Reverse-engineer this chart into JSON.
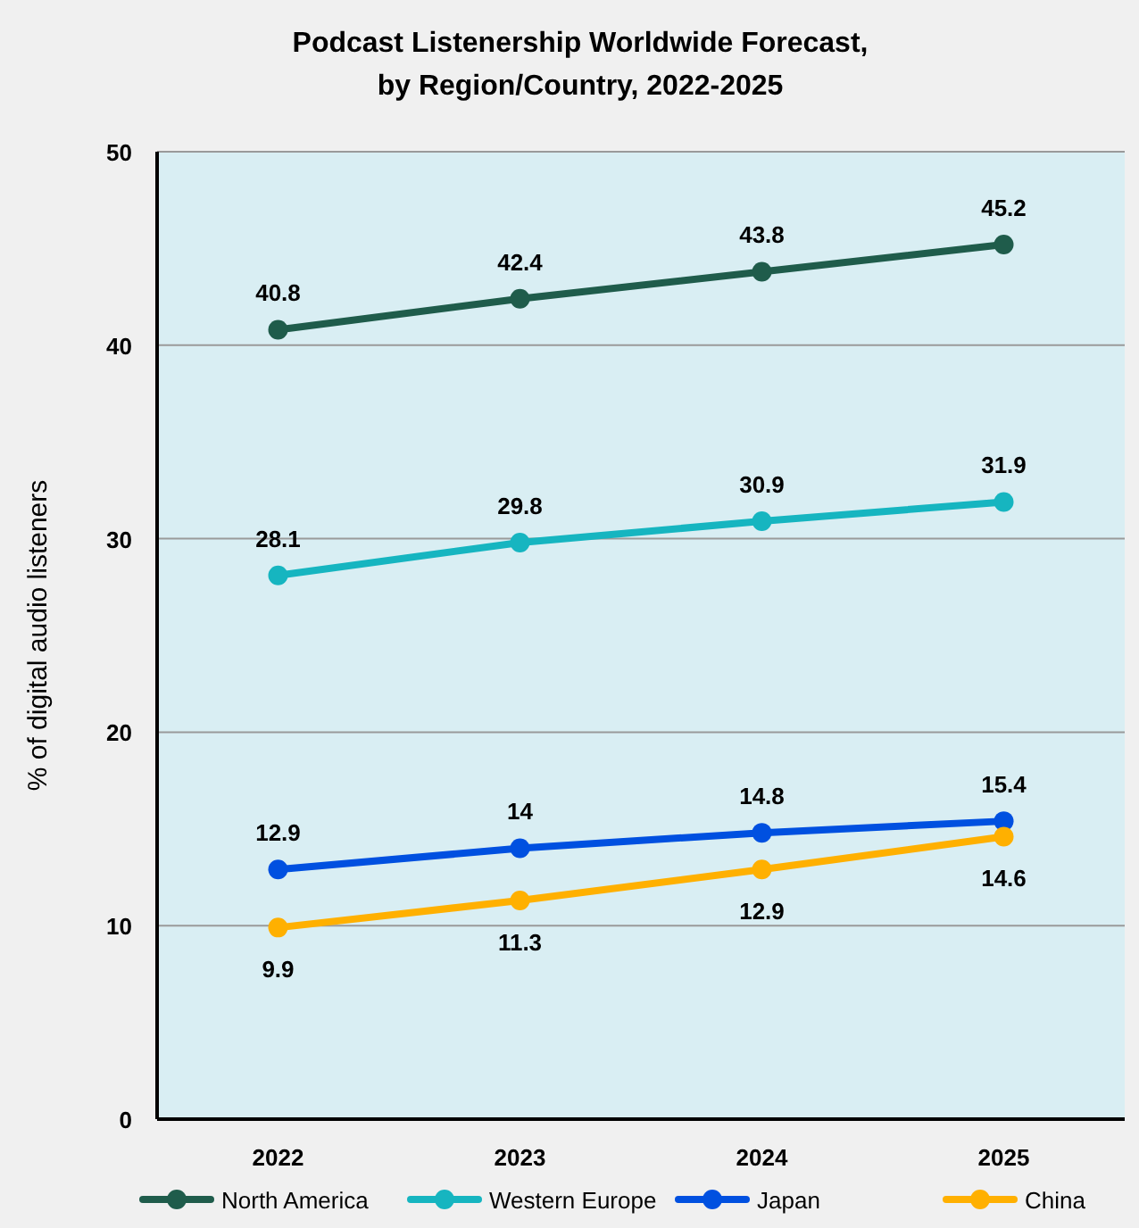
{
  "chart_data": {
    "type": "line",
    "title": "Podcast Listenership Worldwide Forecast,\nby Region/Country, 2022-2025",
    "ylabel": "% of digital audio listeners",
    "categories": [
      "2022",
      "2023",
      "2024",
      "2025"
    ],
    "series": [
      {
        "name": "North America",
        "color": "#1f5c4b",
        "values": [
          40.8,
          42.4,
          43.8,
          45.2
        ]
      },
      {
        "name": "Western Europe",
        "color": "#16b5c0",
        "values": [
          28.1,
          29.8,
          30.9,
          31.9
        ]
      },
      {
        "name": "Japan",
        "color": "#0050e0",
        "values": [
          12.9,
          14,
          14.8,
          15.4
        ]
      },
      {
        "name": "China",
        "color": "#ffb000",
        "values": [
          9.9,
          11.3,
          12.9,
          14.6
        ]
      }
    ],
    "ylim": [
      0,
      50
    ],
    "yticks": [
      0,
      10,
      20,
      30,
      40,
      50
    ],
    "grid": "y",
    "legend": "bottom",
    "marker": "circle",
    "line_style": "solid",
    "data_labels": true
  }
}
